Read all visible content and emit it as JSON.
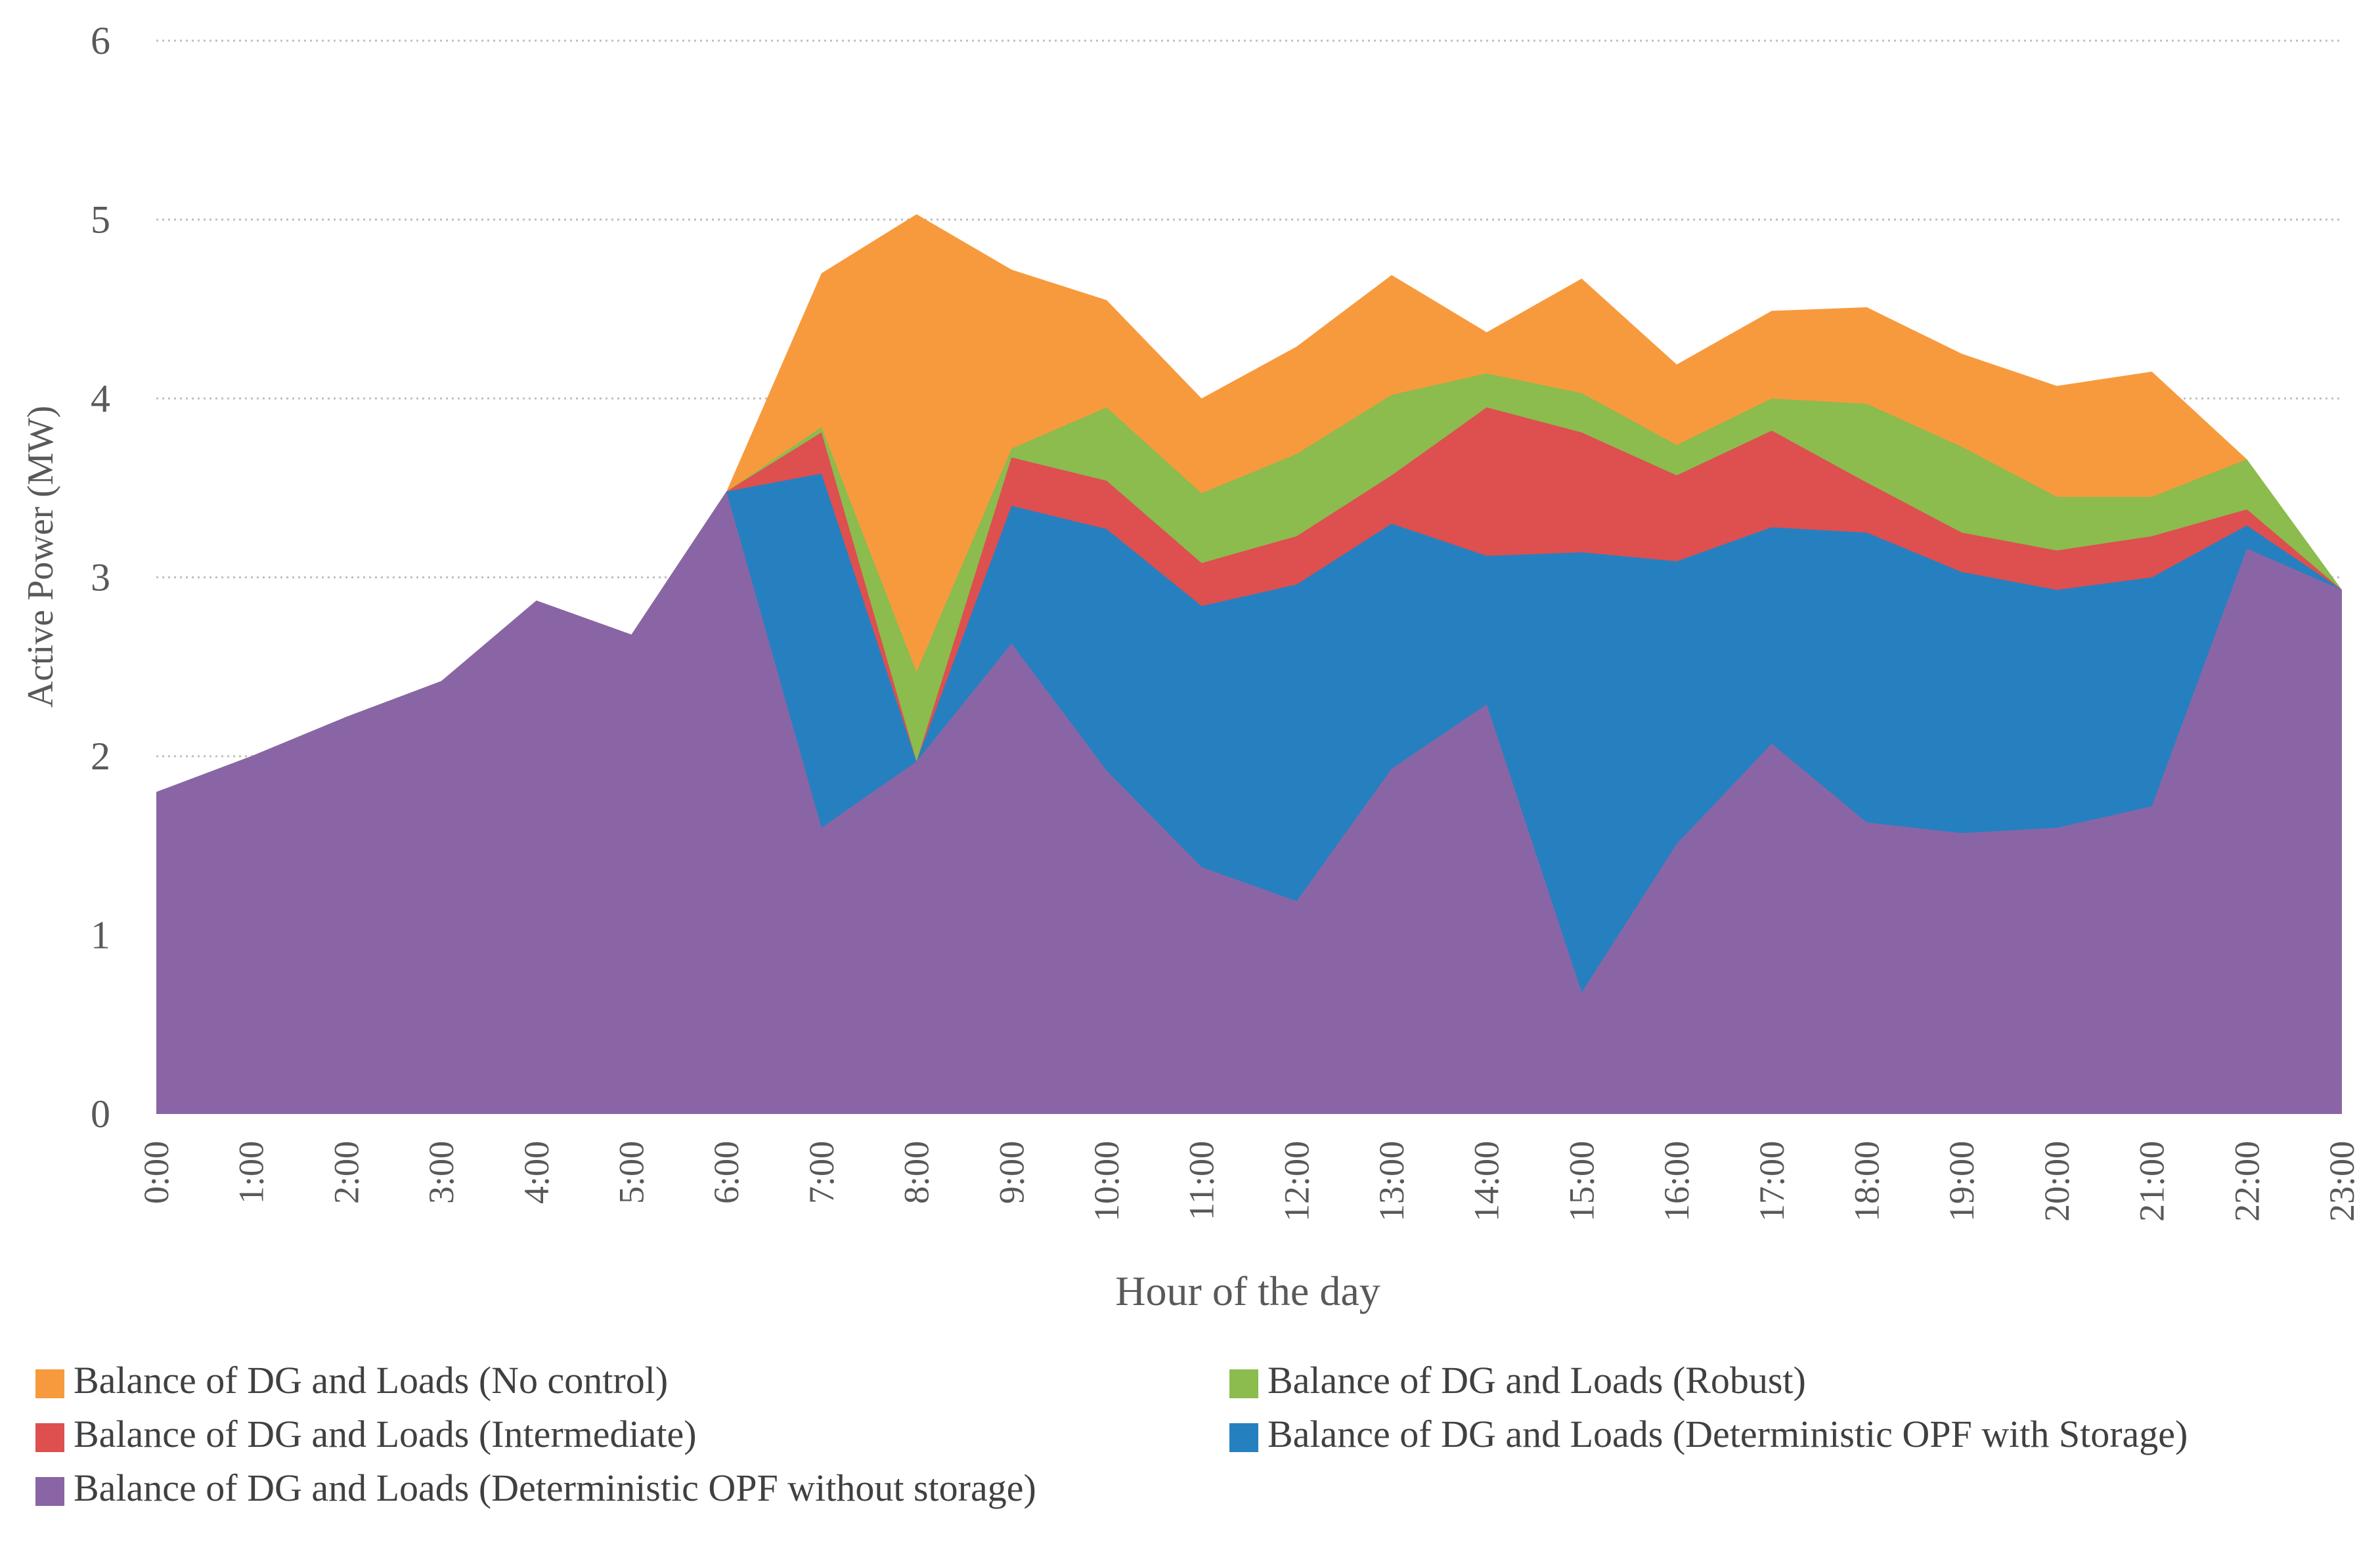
{
  "chart_data": {
    "type": "area",
    "xlabel": "Hour of the day",
    "ylabel": "Active Power (MW)",
    "ylim": [
      0,
      6
    ],
    "yticks": [
      0,
      1,
      2,
      3,
      4,
      5,
      6
    ],
    "grid": "horizontal dotted",
    "legend_position": "bottom",
    "categories": [
      "0:00",
      "1:00",
      "2:00",
      "3:00",
      "4:00",
      "5:00",
      "6:00",
      "7:00",
      "8:00",
      "9:00",
      "10:00",
      "11:00",
      "12:00",
      "13:00",
      "14:00",
      "15:00",
      "16:00",
      "17:00",
      "18:00",
      "19:00",
      "20:00",
      "21:00",
      "22:00",
      "23:00"
    ],
    "series": [
      {
        "name": "Balance of DG and Loads (No control)",
        "color": "#f79a3d",
        "values": [
          1.8,
          2.0,
          2.22,
          2.42,
          2.87,
          2.68,
          3.48,
          4.7,
          5.03,
          4.72,
          4.55,
          4.0,
          4.29,
          4.69,
          4.37,
          4.67,
          4.19,
          4.49,
          4.51,
          4.25,
          4.07,
          4.15,
          3.66,
          2.93
        ]
      },
      {
        "name": "Balance of DG and Loads (Robust)",
        "color": "#8cbb4e",
        "values": [
          1.8,
          2.0,
          2.22,
          2.42,
          2.87,
          2.68,
          3.48,
          3.84,
          2.47,
          3.72,
          3.95,
          3.47,
          3.69,
          4.02,
          4.14,
          4.03,
          3.74,
          4.0,
          3.97,
          3.73,
          3.45,
          3.45,
          3.66,
          2.93
        ]
      },
      {
        "name": "Balance of DG and Loads (Intermediate)",
        "color": "#de4f4f",
        "values": [
          1.8,
          2.0,
          2.22,
          2.42,
          2.87,
          2.68,
          3.48,
          3.81,
          1.97,
          3.67,
          3.54,
          3.08,
          3.23,
          3.57,
          3.95,
          3.81,
          3.57,
          3.82,
          3.53,
          3.25,
          3.15,
          3.23,
          3.38,
          2.93
        ]
      },
      {
        "name": "Balance of DG and Loads (Deterministic OPF with Storage)",
        "color": "#2680c0",
        "values": [
          1.8,
          2.0,
          2.22,
          2.42,
          2.87,
          2.68,
          3.48,
          3.58,
          1.97,
          3.4,
          3.27,
          2.84,
          2.96,
          3.3,
          3.12,
          3.14,
          3.09,
          3.28,
          3.25,
          3.03,
          2.93,
          3.0,
          3.29,
          2.93
        ]
      },
      {
        "name": "Balance of DG and Loads (Deterministic OPF without storage)",
        "color": "#8a65a5",
        "values": [
          1.8,
          2.0,
          2.22,
          2.42,
          2.87,
          2.68,
          3.48,
          1.6,
          1.97,
          2.63,
          1.92,
          1.38,
          1.19,
          1.93,
          2.29,
          0.68,
          1.51,
          2.07,
          1.63,
          1.57,
          1.6,
          1.72,
          3.16,
          2.93
        ]
      }
    ],
    "legend_rows": [
      [
        "Balance of DG and Loads (No control)",
        "Balance of DG and Loads (Robust)"
      ],
      [
        "Balance of DG and Loads (Intermediate)",
        "Balance of DG and Loads (Deterministic OPF with Storage)"
      ],
      [
        "Balance of DG and Loads (Deterministic OPF without storage)"
      ]
    ]
  }
}
